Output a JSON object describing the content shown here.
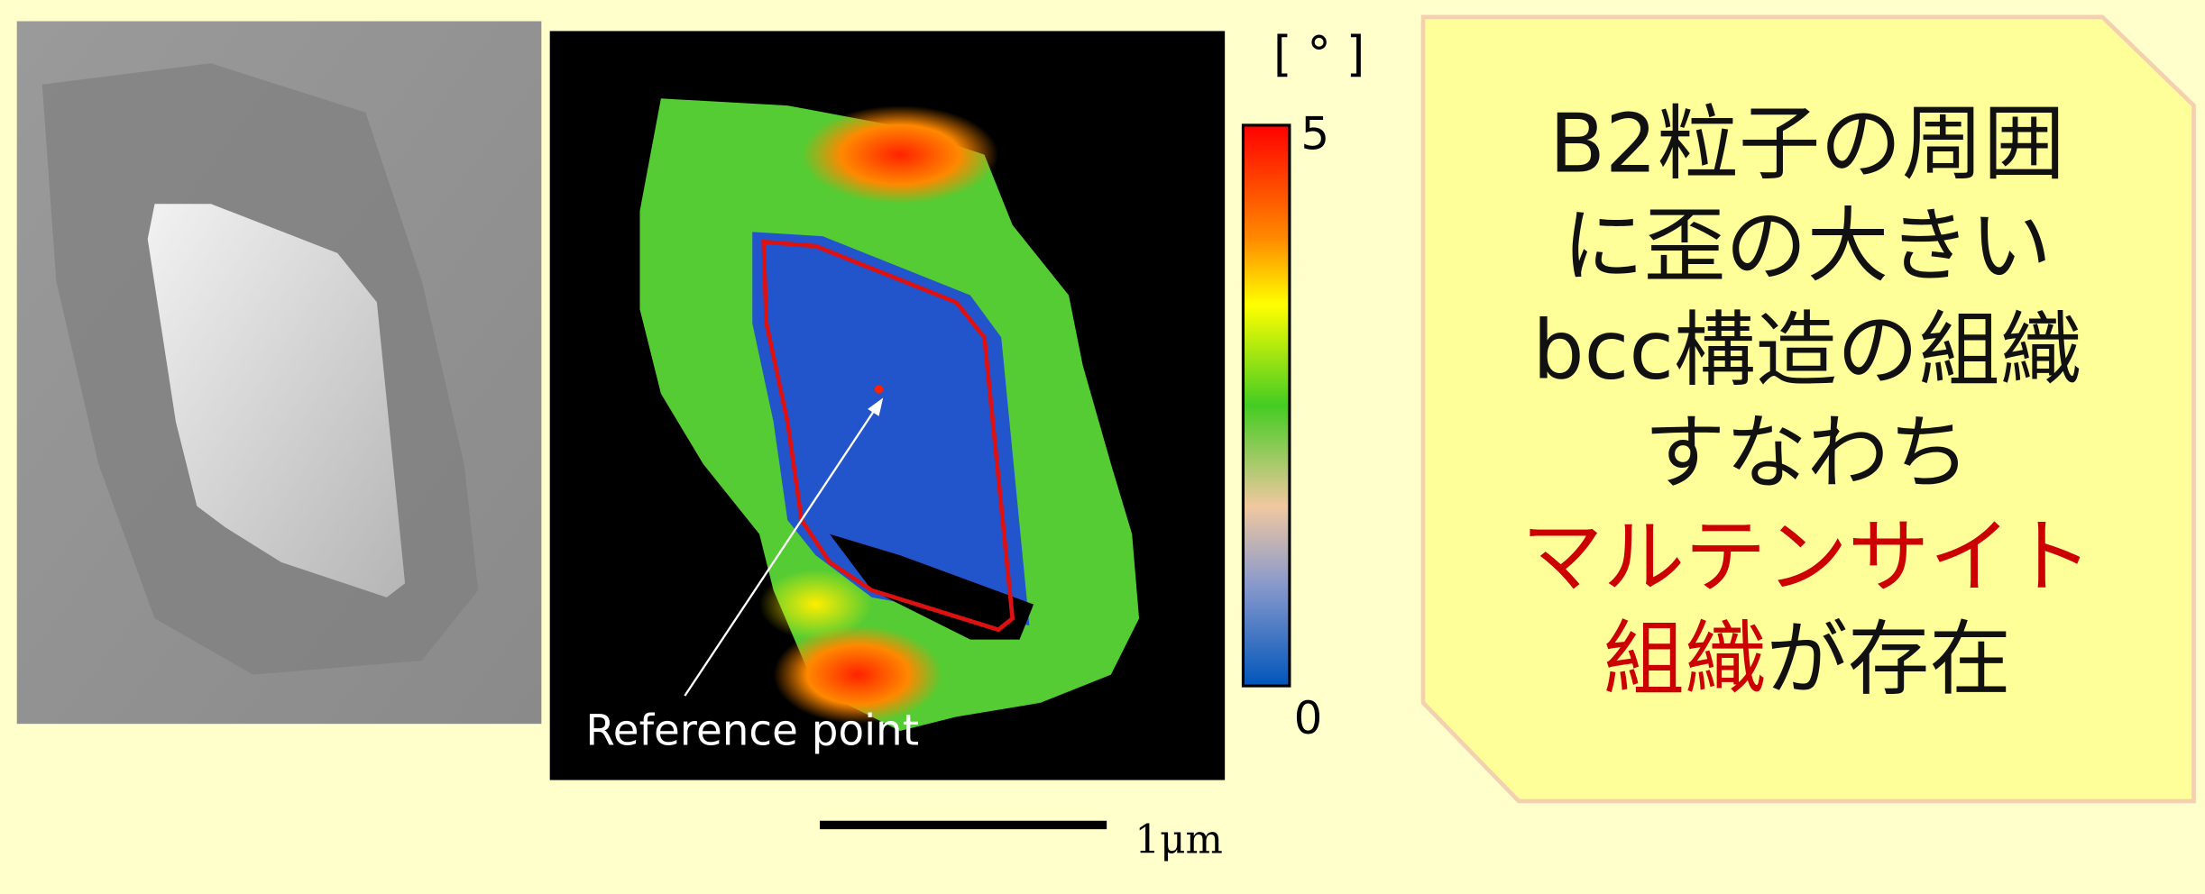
{
  "figure": {
    "map_label": "Reference point",
    "colorbar": {
      "unit": "[ ° ]",
      "max_label": "5",
      "min_label": "0"
    },
    "scale_bar": "1μm"
  },
  "text_box": {
    "lines": [
      "B2粒子の周囲",
      "に歪の大きい",
      "bcc構造の組織",
      "すなわち",
      "マルテンサイト"
    ],
    "last_line": {
      "red": "組織",
      "black": "が存在"
    }
  }
}
